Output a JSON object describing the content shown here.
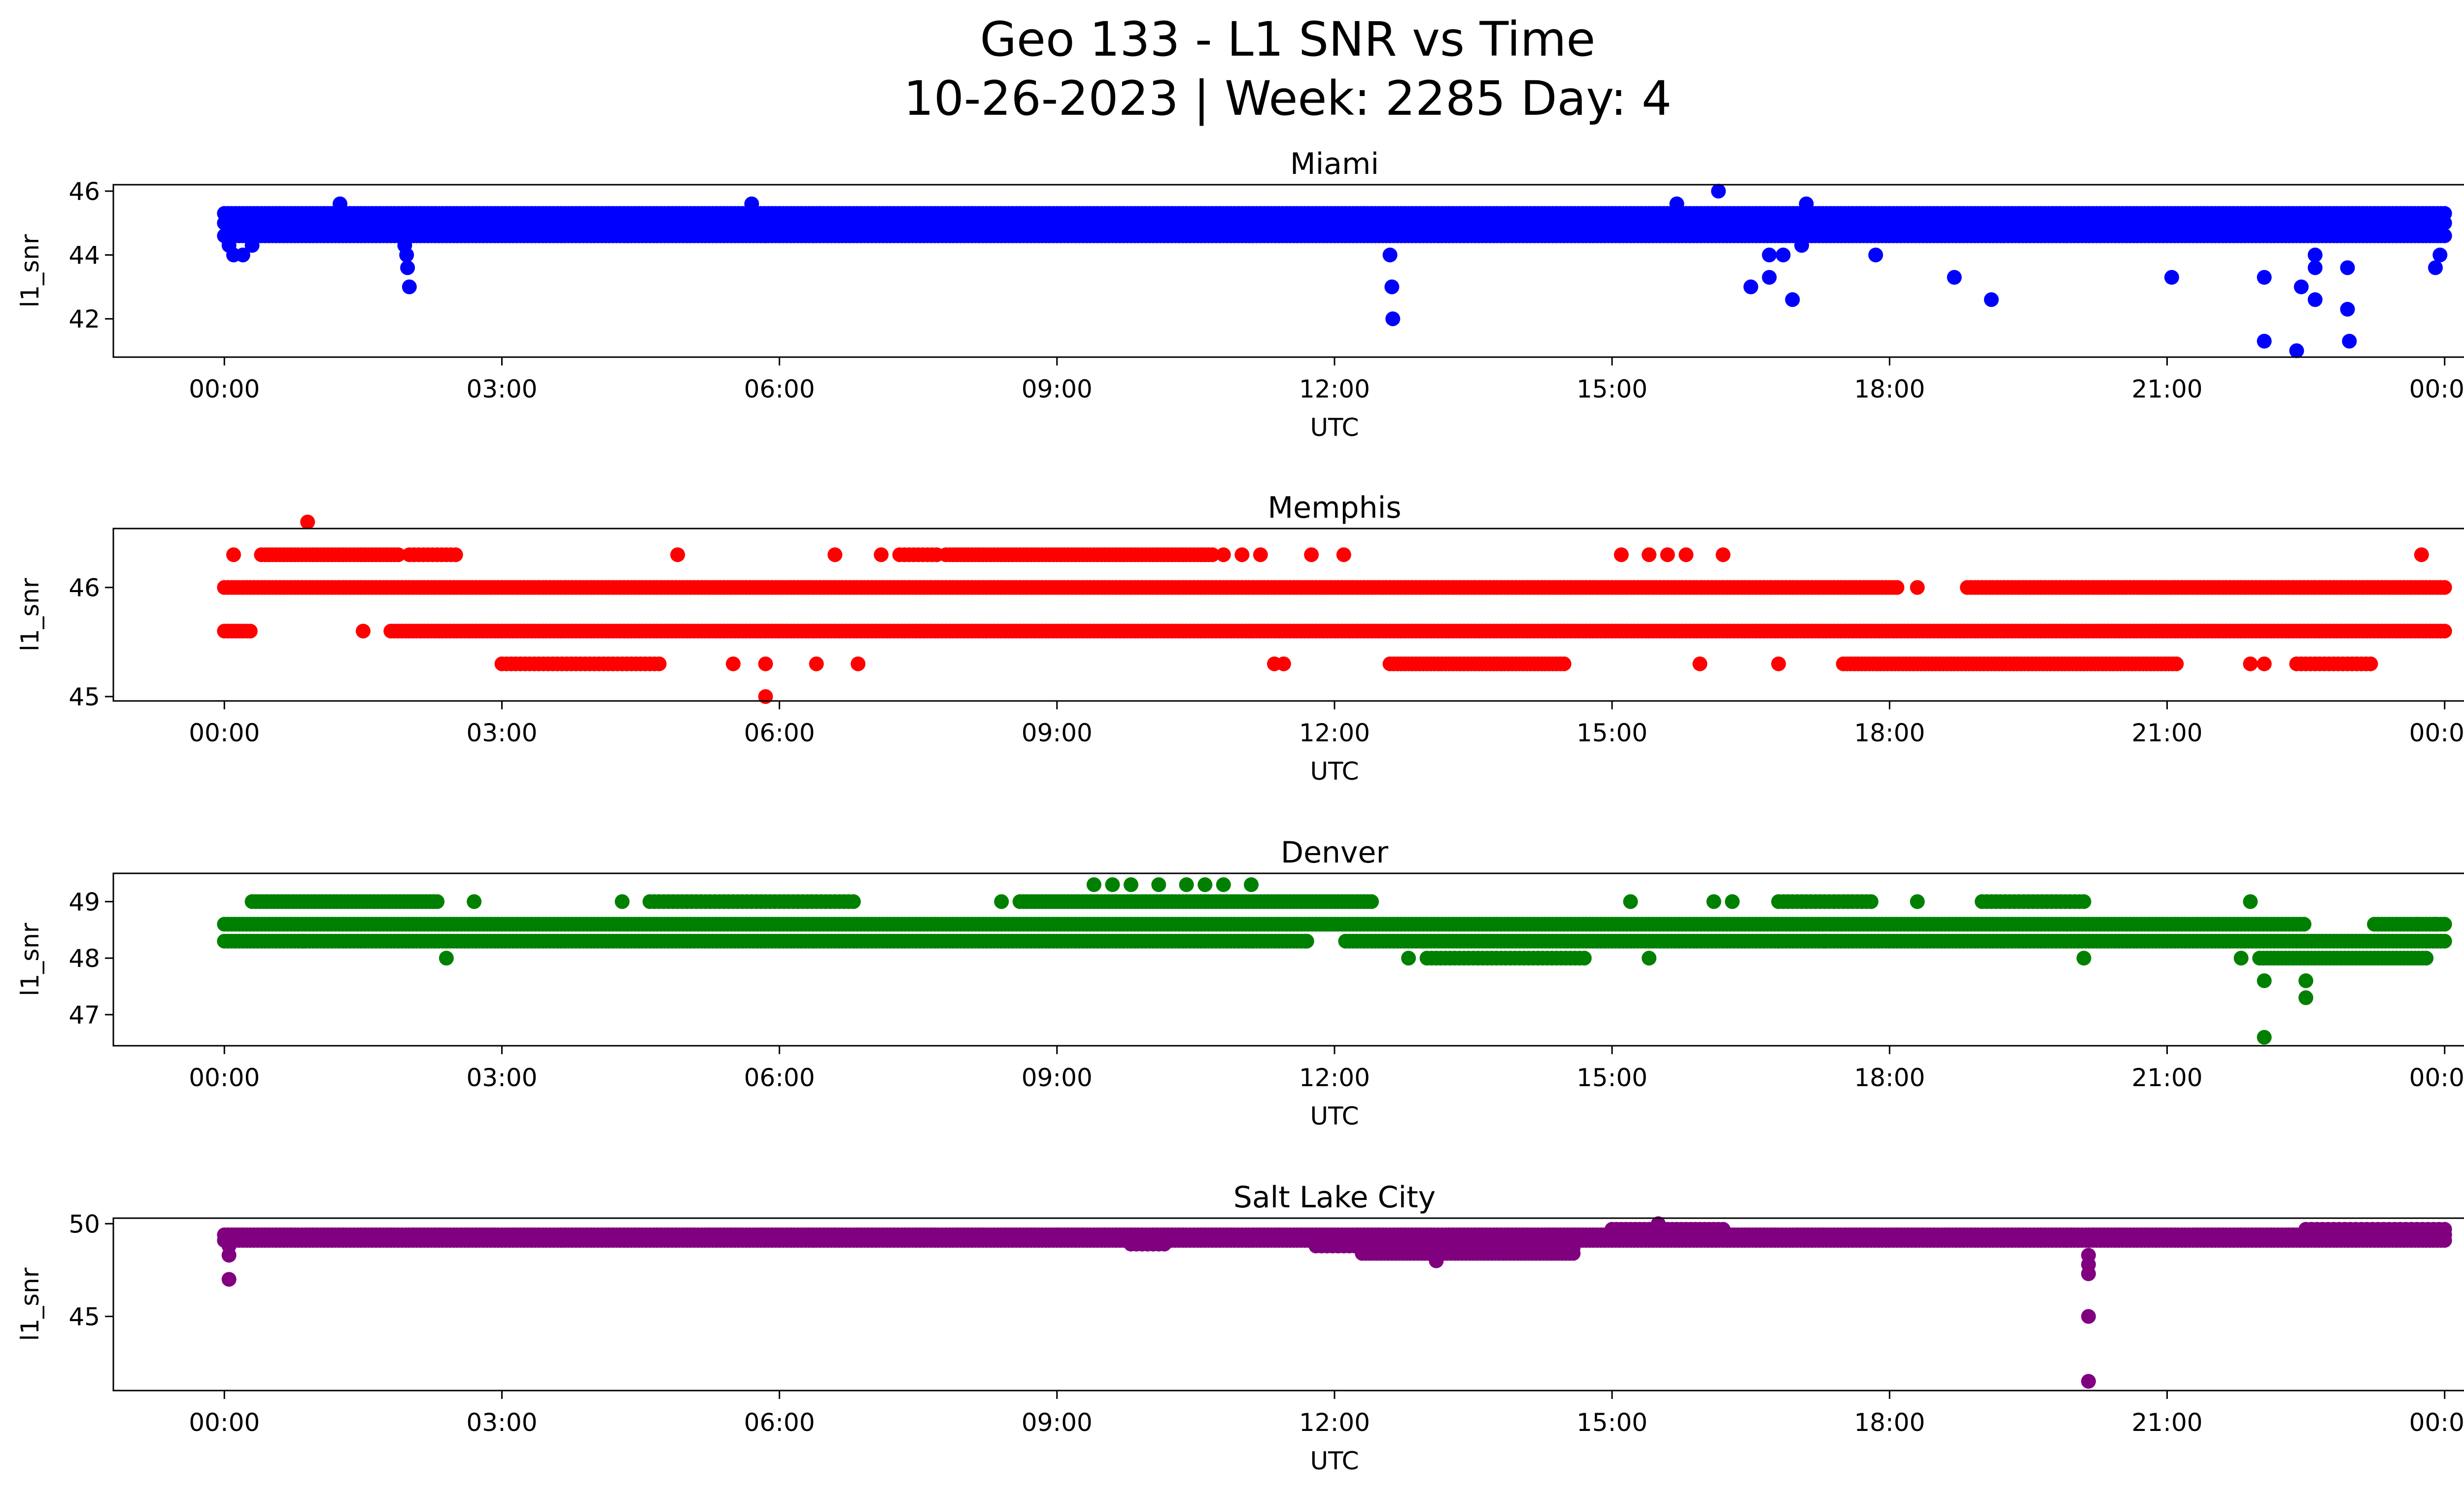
{
  "figure": {
    "title": "Geo 133 - L1 SNR vs Time",
    "subtitle": "10-26-2023 | Week: 2285 Day: 4"
  },
  "chart_data": [
    {
      "type": "scatter",
      "title": "Miami",
      "xlabel": "UTC",
      "ylabel": "l1_snr",
      "color": "#0000ff",
      "xticks": [
        "00:00",
        "03:00",
        "06:00",
        "09:00",
        "12:00",
        "15:00",
        "18:00",
        "21:00",
        "00:00"
      ],
      "xlim_hours": [
        -1.2,
        25.2
      ],
      "ylim": [
        40.8,
        46.2
      ],
      "yticks": [
        42,
        44,
        46
      ],
      "bands": [
        {
          "start": 0.0,
          "end": 24.0,
          "values": [
            44.6,
            45.0,
            45.3
          ],
          "step": 0.04
        }
      ],
      "points": [
        {
          "x": 0.05,
          "y": 44.3
        },
        {
          "x": 0.1,
          "y": 44.0
        },
        {
          "x": 0.2,
          "y": 44.0
        },
        {
          "x": 0.3,
          "y": 44.3
        },
        {
          "x": 1.25,
          "y": 45.6
        },
        {
          "x": 1.95,
          "y": 44.3
        },
        {
          "x": 1.97,
          "y": 44.0
        },
        {
          "x": 1.98,
          "y": 43.6
        },
        {
          "x": 2.0,
          "y": 43.0
        },
        {
          "x": 5.7,
          "y": 45.6
        },
        {
          "x": 5.85,
          "y": 44.6
        },
        {
          "x": 12.6,
          "y": 44.0
        },
        {
          "x": 12.62,
          "y": 43.0
        },
        {
          "x": 12.63,
          "y": 42.0
        },
        {
          "x": 15.7,
          "y": 45.6
        },
        {
          "x": 16.15,
          "y": 46.0
        },
        {
          "x": 16.5,
          "y": 43.0
        },
        {
          "x": 16.7,
          "y": 43.3
        },
        {
          "x": 16.7,
          "y": 44.0
        },
        {
          "x": 16.85,
          "y": 44.0
        },
        {
          "x": 16.95,
          "y": 42.6
        },
        {
          "x": 17.05,
          "y": 44.3
        },
        {
          "x": 17.1,
          "y": 45.6
        },
        {
          "x": 17.85,
          "y": 44.0
        },
        {
          "x": 18.7,
          "y": 43.3
        },
        {
          "x": 19.1,
          "y": 42.6
        },
        {
          "x": 21.05,
          "y": 43.3
        },
        {
          "x": 22.05,
          "y": 43.3
        },
        {
          "x": 22.05,
          "y": 41.3
        },
        {
          "x": 22.4,
          "y": 41.0
        },
        {
          "x": 22.45,
          "y": 43.0
        },
        {
          "x": 22.6,
          "y": 42.6
        },
        {
          "x": 22.6,
          "y": 43.6
        },
        {
          "x": 22.6,
          "y": 44.0
        },
        {
          "x": 22.95,
          "y": 43.6
        },
        {
          "x": 22.95,
          "y": 42.3
        },
        {
          "x": 22.97,
          "y": 41.3
        },
        {
          "x": 23.9,
          "y": 43.6
        },
        {
          "x": 23.95,
          "y": 44.0
        }
      ]
    },
    {
      "type": "scatter",
      "title": "Memphis",
      "xlabel": "UTC",
      "ylabel": "l1_snr",
      "color": "#ff0000",
      "xticks": [
        "00:00",
        "03:00",
        "06:00",
        "09:00",
        "12:00",
        "15:00",
        "18:00",
        "21:00",
        "00:00"
      ],
      "xlim_hours": [
        -1.2,
        25.2
      ],
      "ylim": [
        44.96,
        46.54
      ],
      "yticks": [
        45,
        46
      ],
      "bands": [
        {
          "start": 0.0,
          "end": 24.0,
          "values": [
            46.0
          ],
          "step": 0.04,
          "gaps": [
            [
              18.1,
              18.8
            ]
          ]
        },
        {
          "start": 0.0,
          "end": 24.0,
          "values": [
            45.6
          ],
          "step": 0.04,
          "gaps": [
            [
              0.3,
              1.8
            ]
          ]
        },
        {
          "start": 0.4,
          "end": 1.9,
          "values": [
            46.3
          ],
          "step": 0.04
        },
        {
          "start": 2.0,
          "end": 2.5,
          "values": [
            46.3
          ],
          "step": 0.05
        },
        {
          "start": 7.3,
          "end": 7.7,
          "values": [
            46.3
          ],
          "step": 0.05
        },
        {
          "start": 7.8,
          "end": 10.7,
          "values": [
            46.3
          ],
          "step": 0.04
        },
        {
          "start": 3.0,
          "end": 4.7,
          "values": [
            45.3
          ],
          "step": 0.05
        },
        {
          "start": 12.6,
          "end": 14.5,
          "values": [
            45.3
          ],
          "step": 0.04
        },
        {
          "start": 17.5,
          "end": 21.1,
          "values": [
            45.3
          ],
          "step": 0.04
        },
        {
          "start": 22.4,
          "end": 23.2,
          "values": [
            45.3
          ],
          "step": 0.05
        }
      ],
      "points": [
        {
          "x": 0.1,
          "y": 46.3
        },
        {
          "x": 0.9,
          "y": 46.6
        },
        {
          "x": 1.5,
          "y": 45.6
        },
        {
          "x": 4.9,
          "y": 46.3
        },
        {
          "x": 5.5,
          "y": 45.3
        },
        {
          "x": 5.85,
          "y": 45.3
        },
        {
          "x": 5.85,
          "y": 45.0
        },
        {
          "x": 6.4,
          "y": 45.3
        },
        {
          "x": 6.6,
          "y": 46.3
        },
        {
          "x": 6.85,
          "y": 45.3
        },
        {
          "x": 7.1,
          "y": 46.3
        },
        {
          "x": 10.8,
          "y": 46.3
        },
        {
          "x": 11.0,
          "y": 46.3
        },
        {
          "x": 11.2,
          "y": 46.3
        },
        {
          "x": 11.35,
          "y": 45.3
        },
        {
          "x": 11.45,
          "y": 45.3
        },
        {
          "x": 11.75,
          "y": 46.3
        },
        {
          "x": 12.1,
          "y": 46.3
        },
        {
          "x": 15.1,
          "y": 46.3
        },
        {
          "x": 15.4,
          "y": 46.3
        },
        {
          "x": 15.6,
          "y": 46.3
        },
        {
          "x": 15.8,
          "y": 46.3
        },
        {
          "x": 15.95,
          "y": 45.3
        },
        {
          "x": 16.2,
          "y": 46.3
        },
        {
          "x": 16.8,
          "y": 45.3
        },
        {
          "x": 18.3,
          "y": 46.0
        },
        {
          "x": 21.9,
          "y": 45.3
        },
        {
          "x": 22.05,
          "y": 45.3
        },
        {
          "x": 23.75,
          "y": 46.3
        }
      ]
    },
    {
      "type": "scatter",
      "title": "Denver",
      "xlabel": "UTC",
      "ylabel": "l1_snr",
      "color": "#008000",
      "xticks": [
        "00:00",
        "03:00",
        "06:00",
        "09:00",
        "12:00",
        "15:00",
        "18:00",
        "21:00",
        "00:00"
      ],
      "xlim_hours": [
        -1.2,
        25.2
      ],
      "ylim": [
        46.45,
        49.5
      ],
      "yticks": [
        47,
        48,
        49
      ],
      "bands": [
        {
          "start": 0.0,
          "end": 24.0,
          "values": [
            48.6
          ],
          "step": 0.04,
          "gaps": [
            [
              22.5,
              23.2
            ]
          ]
        },
        {
          "start": 0.0,
          "end": 24.0,
          "values": [
            48.3
          ],
          "step": 0.04,
          "gaps": [
            [
              11.7,
              12.1
            ]
          ]
        },
        {
          "start": 0.3,
          "end": 2.3,
          "values": [
            49.0
          ],
          "step": 0.04
        },
        {
          "start": 4.6,
          "end": 6.8,
          "values": [
            49.0
          ],
          "step": 0.05
        },
        {
          "start": 8.6,
          "end": 12.4,
          "values": [
            49.0
          ],
          "step": 0.04
        },
        {
          "start": 16.8,
          "end": 17.8,
          "values": [
            49.0
          ],
          "step": 0.05
        },
        {
          "start": 19.0,
          "end": 20.1,
          "values": [
            49.0
          ],
          "step": 0.05
        },
        {
          "start": 13.0,
          "end": 14.7,
          "values": [
            48.0
          ],
          "step": 0.05
        },
        {
          "start": 22.0,
          "end": 23.8,
          "values": [
            48.0
          ],
          "step": 0.04
        }
      ],
      "points": [
        {
          "x": 0.85,
          "y": 48.3
        },
        {
          "x": 2.4,
          "y": 48.0
        },
        {
          "x": 2.7,
          "y": 49.0
        },
        {
          "x": 4.3,
          "y": 49.0
        },
        {
          "x": 8.4,
          "y": 49.0
        },
        {
          "x": 9.4,
          "y": 49.3
        },
        {
          "x": 9.6,
          "y": 49.3
        },
        {
          "x": 9.8,
          "y": 49.3
        },
        {
          "x": 10.1,
          "y": 49.3
        },
        {
          "x": 10.4,
          "y": 49.3
        },
        {
          "x": 10.6,
          "y": 49.3
        },
        {
          "x": 10.8,
          "y": 49.3
        },
        {
          "x": 11.1,
          "y": 49.3
        },
        {
          "x": 11.7,
          "y": 48.3
        },
        {
          "x": 12.8,
          "y": 48.0
        },
        {
          "x": 15.2,
          "y": 49.0
        },
        {
          "x": 15.4,
          "y": 48.0
        },
        {
          "x": 16.1,
          "y": 49.0
        },
        {
          "x": 16.3,
          "y": 49.0
        },
        {
          "x": 16.8,
          "y": 48.3
        },
        {
          "x": 17.3,
          "y": 48.3
        },
        {
          "x": 18.3,
          "y": 49.0
        },
        {
          "x": 20.1,
          "y": 48.0
        },
        {
          "x": 21.8,
          "y": 48.0
        },
        {
          "x": 21.9,
          "y": 49.0
        },
        {
          "x": 22.05,
          "y": 47.6
        },
        {
          "x": 22.05,
          "y": 46.6
        },
        {
          "x": 22.5,
          "y": 47.6
        },
        {
          "x": 22.5,
          "y": 47.3
        },
        {
          "x": 23.7,
          "y": 48.6
        },
        {
          "x": 23.9,
          "y": 48.6
        }
      ]
    },
    {
      "type": "scatter",
      "title": "Salt Lake City",
      "xlabel": "UTC",
      "ylabel": "l1_snr",
      "color": "#800080",
      "xticks": [
        "00:00",
        "03:00",
        "06:00",
        "09:00",
        "12:00",
        "15:00",
        "18:00",
        "21:00",
        "00:00"
      ],
      "xlim_hours": [
        -1.2,
        25.2
      ],
      "ylim": [
        41.0,
        50.3
      ],
      "yticks": [
        45,
        50
      ],
      "bands": [
        {
          "start": 0.0,
          "end": 24.0,
          "values": [
            49.1,
            49.4
          ],
          "step": 0.04
        },
        {
          "start": 9.8,
          "end": 10.2,
          "values": [
            48.9
          ],
          "step": 0.06
        },
        {
          "start": 11.8,
          "end": 12.3,
          "values": [
            48.8
          ],
          "step": 0.06
        },
        {
          "start": 12.3,
          "end": 14.6,
          "values": [
            48.4,
            48.7
          ],
          "step": 0.04
        },
        {
          "start": 15.0,
          "end": 16.2,
          "values": [
            49.7
          ],
          "step": 0.05
        },
        {
          "start": 22.5,
          "end": 24.0,
          "values": [
            49.7
          ],
          "step": 0.06
        }
      ],
      "points": [
        {
          "x": 0.05,
          "y": 48.8
        },
        {
          "x": 0.05,
          "y": 48.3
        },
        {
          "x": 0.05,
          "y": 47.0
        },
        {
          "x": 13.1,
          "y": 48.0
        },
        {
          "x": 15.5,
          "y": 50.0
        },
        {
          "x": 20.15,
          "y": 48.3
        },
        {
          "x": 20.15,
          "y": 47.8
        },
        {
          "x": 20.15,
          "y": 47.3
        },
        {
          "x": 20.15,
          "y": 45.0
        },
        {
          "x": 20.15,
          "y": 41.5
        }
      ]
    }
  ]
}
